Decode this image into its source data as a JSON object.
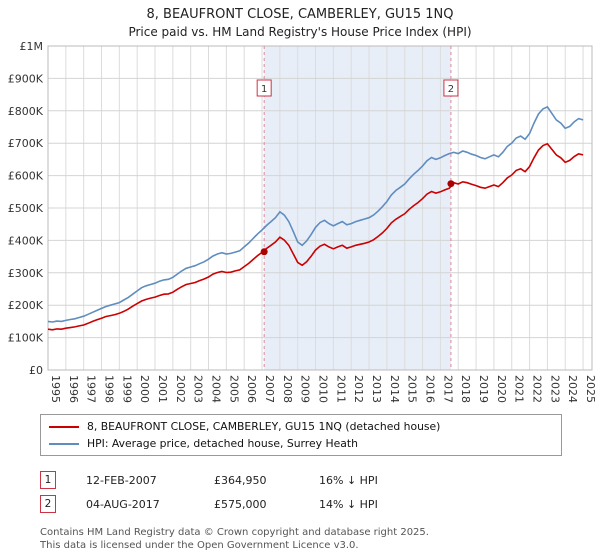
{
  "title": "8, BEAUFRONT CLOSE, CAMBERLEY, GU15 1NQ",
  "subtitle": "Price paid vs. HM Land Registry's House Price Index (HPI)",
  "chart_data": {
    "type": "line",
    "y_unit": "GBP thousands",
    "xlim": [
      1995,
      2025.5
    ],
    "ylim_k": [
      0,
      1000
    ],
    "x_start": 1995,
    "x_step_years": 0.25,
    "grid": true,
    "x_tick_years": [
      1995,
      1996,
      1997,
      1998,
      1999,
      2000,
      2001,
      2002,
      2003,
      2004,
      2005,
      2006,
      2007,
      2008,
      2009,
      2010,
      2011,
      2012,
      2013,
      2014,
      2015,
      2016,
      2017,
      2018,
      2019,
      2020,
      2021,
      2022,
      2023,
      2024,
      2025
    ],
    "y_ticks": [
      {
        "v": 0,
        "label": "£0"
      },
      {
        "v": 100,
        "label": "£100K"
      },
      {
        "v": 200,
        "label": "£200K"
      },
      {
        "v": 300,
        "label": "£300K"
      },
      {
        "v": 400,
        "label": "£400K"
      },
      {
        "v": 500,
        "label": "£500K"
      },
      {
        "v": 600,
        "label": "£600K"
      },
      {
        "v": 700,
        "label": "£700K"
      },
      {
        "v": 800,
        "label": "£800K"
      },
      {
        "v": 900,
        "label": "£900K"
      },
      {
        "v": 1000,
        "label": "£1M"
      }
    ],
    "colors": {
      "shaded": "#e8eef8",
      "dashed": "#dd8899",
      "sale_dot": "#aa0000",
      "marker_box_border": "#cc3344",
      "grid_v": "#dcdcdc",
      "grid_h": "#d4d4d4",
      "plot_border": "#bbbbbb"
    },
    "series": [
      {
        "name": "8, BEAUFRONT CLOSE, CAMBERLEY, GU15 1NQ (detached house)",
        "color": "#cc0000",
        "values_k": [
          126,
          124,
          127,
          126,
          129,
          131,
          133,
          136,
          139,
          144,
          150,
          155,
          160,
          165,
          168,
          171,
          175,
          181,
          188,
          197,
          205,
          213,
          218,
          222,
          225,
          230,
          234,
          235,
          240,
          249,
          257,
          264,
          267,
          270,
          276,
          281,
          287,
          296,
          301,
          304,
          301,
          302,
          306,
          309,
          319,
          329,
          341,
          353,
          363,
          375,
          385,
          395,
          410,
          401,
          385,
          359,
          332,
          323,
          334,
          351,
          370,
          382,
          388,
          380,
          374,
          380,
          385,
          376,
          380,
          385,
          388,
          391,
          395,
          402,
          412,
          423,
          437,
          454,
          465,
          474,
          482,
          496,
          507,
          517,
          529,
          543,
          551,
          546,
          550,
          556,
          561,
          578,
          574,
          581,
          578,
          573,
          569,
          564,
          561,
          566,
          571,
          566,
          578,
          593,
          602,
          616,
          621,
          612,
          628,
          655,
          679,
          693,
          698,
          681,
          664,
          655,
          641,
          647,
          659,
          667,
          664
        ]
      },
      {
        "name": "HPI: Average price, detached house, Surrey Heath",
        "color": "#5f8dc0",
        "values_k": [
          150,
          148,
          151,
          150,
          153,
          156,
          158,
          162,
          166,
          172,
          178,
          184,
          190,
          196,
          200,
          204,
          208,
          216,
          224,
          234,
          244,
          254,
          260,
          264,
          268,
          274,
          278,
          280,
          286,
          296,
          306,
          314,
          318,
          322,
          328,
          334,
          342,
          352,
          358,
          362,
          358,
          360,
          364,
          368,
          380,
          392,
          406,
          420,
          432,
          446,
          458,
          470,
          488,
          478,
          458,
          428,
          395,
          385,
          398,
          418,
          440,
          455,
          462,
          452,
          445,
          452,
          458,
          448,
          452,
          458,
          462,
          466,
          470,
          478,
          490,
          504,
          520,
          540,
          554,
          564,
          574,
          590,
          604,
          616,
          630,
          646,
          656,
          650,
          655,
          662,
          668,
          672,
          668,
          676,
          672,
          666,
          662,
          656,
          652,
          658,
          664,
          658,
          672,
          690,
          700,
          716,
          722,
          712,
          730,
          762,
          790,
          806,
          812,
          792,
          772,
          762,
          746,
          752,
          766,
          776,
          772
        ]
      }
    ],
    "markers": [
      {
        "label": "1",
        "x": 2007.12,
        "value_k": 364.95,
        "date": "12-FEB-2007",
        "price": "£364,950",
        "vs_hpi": "16% ↓ HPI"
      },
      {
        "label": "2",
        "x": 2017.59,
        "value_k": 575,
        "date": "04-AUG-2017",
        "price": "£575,000",
        "vs_hpi": "14% ↓ HPI"
      }
    ]
  },
  "legend": {
    "items": [
      {
        "label": "8, BEAUFRONT CLOSE, CAMBERLEY, GU15 1NQ (detached house)"
      },
      {
        "label": "HPI: Average price, detached house, Surrey Heath"
      }
    ]
  },
  "footer": {
    "line1": "Contains HM Land Registry data © Crown copyright and database right 2025.",
    "line2": "This data is licensed under the Open Government Licence v3.0."
  }
}
